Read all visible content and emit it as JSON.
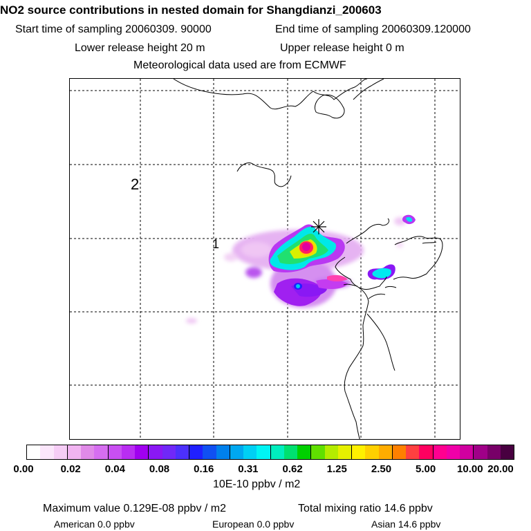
{
  "header": {
    "title": "NO2 source contributions in nested domain for Shangdianzi_200603",
    "start_time": "Start time of sampling 20060309. 90000",
    "end_time": "End time of sampling 20060309.120000",
    "lower_release": "Lower release height   20 m",
    "upper_release": "Upper release height    0 m",
    "met_data": "Meteorological data used are from ECMWF"
  },
  "map": {
    "region_labels": [
      "2",
      "1"
    ],
    "station_marker": "plus-cross"
  },
  "colorbar": {
    "colors": [
      "#ffffff",
      "#fbe6fb",
      "#f6cdf6",
      "#f1b4f1",
      "#e08ae8",
      "#d66ef0",
      "#c94ff2",
      "#b92df2",
      "#a000f0",
      "#8a18f4",
      "#7028f8",
      "#4c30fc",
      "#2020ff",
      "#1050f2",
      "#0080ec",
      "#00a8f0",
      "#00d0f4",
      "#00f4f4",
      "#00eebe",
      "#00e070",
      "#00d000",
      "#60e000",
      "#b4ec00",
      "#e6f000",
      "#fff000",
      "#ffd000",
      "#ffac00",
      "#ff8000",
      "#ff4040",
      "#ff0060",
      "#ff0090",
      "#f000a8",
      "#d000a0",
      "#a00088",
      "#780068",
      "#480040"
    ],
    "tick_labels": [
      "0.00",
      "0.02",
      "0.04",
      "0.08",
      "0.16",
      "0.31",
      "0.62",
      "1.25",
      "2.50",
      "5.00",
      "10.00",
      "20.00"
    ],
    "unit": "10E-10 ppbv / m2"
  },
  "footer": {
    "maximum": "Maximum value  0.129E-08 ppbv / m2",
    "total": "Total mixing ratio      14.6 ppbv",
    "american": "American       0.0 ppbv",
    "european": "European       0.0 ppbv",
    "asian": "Asian       14.6 ppbv"
  }
}
